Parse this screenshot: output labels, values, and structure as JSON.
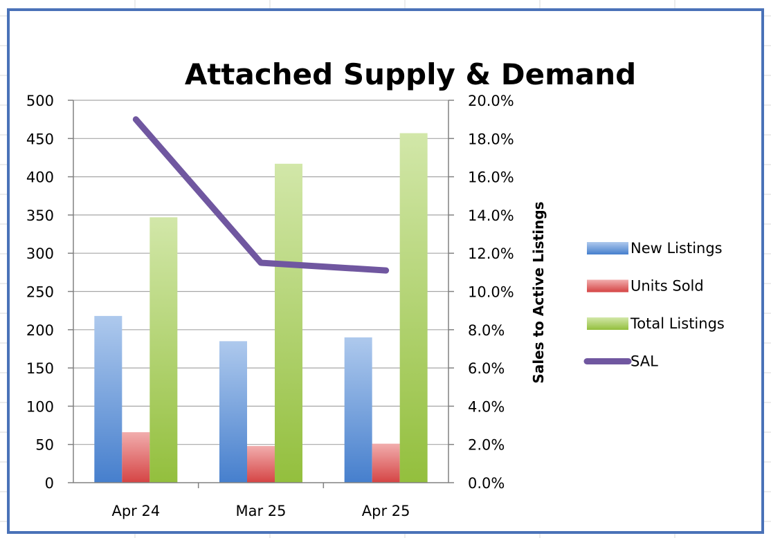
{
  "chart_data": {
    "type": "bar",
    "title": "Attached Supply & Demand",
    "categories": [
      "Apr 24",
      "Mar 25",
      "Apr 25"
    ],
    "series": [
      {
        "name": "New Listings",
        "type": "bar",
        "axis": "left",
        "values": [
          218,
          185,
          190
        ],
        "color": "#4a86d8"
      },
      {
        "name": "Units Sold",
        "type": "bar",
        "axis": "left",
        "values": [
          66,
          48,
          51
        ],
        "color": "#e04848"
      },
      {
        "name": "Total Listings",
        "type": "bar",
        "axis": "left",
        "values": [
          347,
          417,
          457
        ],
        "color": "#9bc940"
      },
      {
        "name": "SAL",
        "type": "line",
        "axis": "right",
        "values": [
          0.19,
          0.115,
          0.111
        ],
        "color": "#7057a0"
      }
    ],
    "y_left": {
      "min": 0,
      "max": 500,
      "step": 50,
      "ticks": [
        "0",
        "50",
        "100",
        "150",
        "200",
        "250",
        "300",
        "350",
        "400",
        "450",
        "500"
      ]
    },
    "y_right": {
      "min": 0,
      "max": 0.2,
      "step": 0.02,
      "label": "Sales to Active Listings",
      "ticks": [
        "0.0%",
        "2.0%",
        "4.0%",
        "6.0%",
        "8.0%",
        "10.0%",
        "12.0%",
        "14.0%",
        "16.0%",
        "18.0%",
        "20.0%"
      ]
    },
    "grid": "horizontal",
    "legend_position": "right",
    "frame_color": "#4a72b8"
  }
}
